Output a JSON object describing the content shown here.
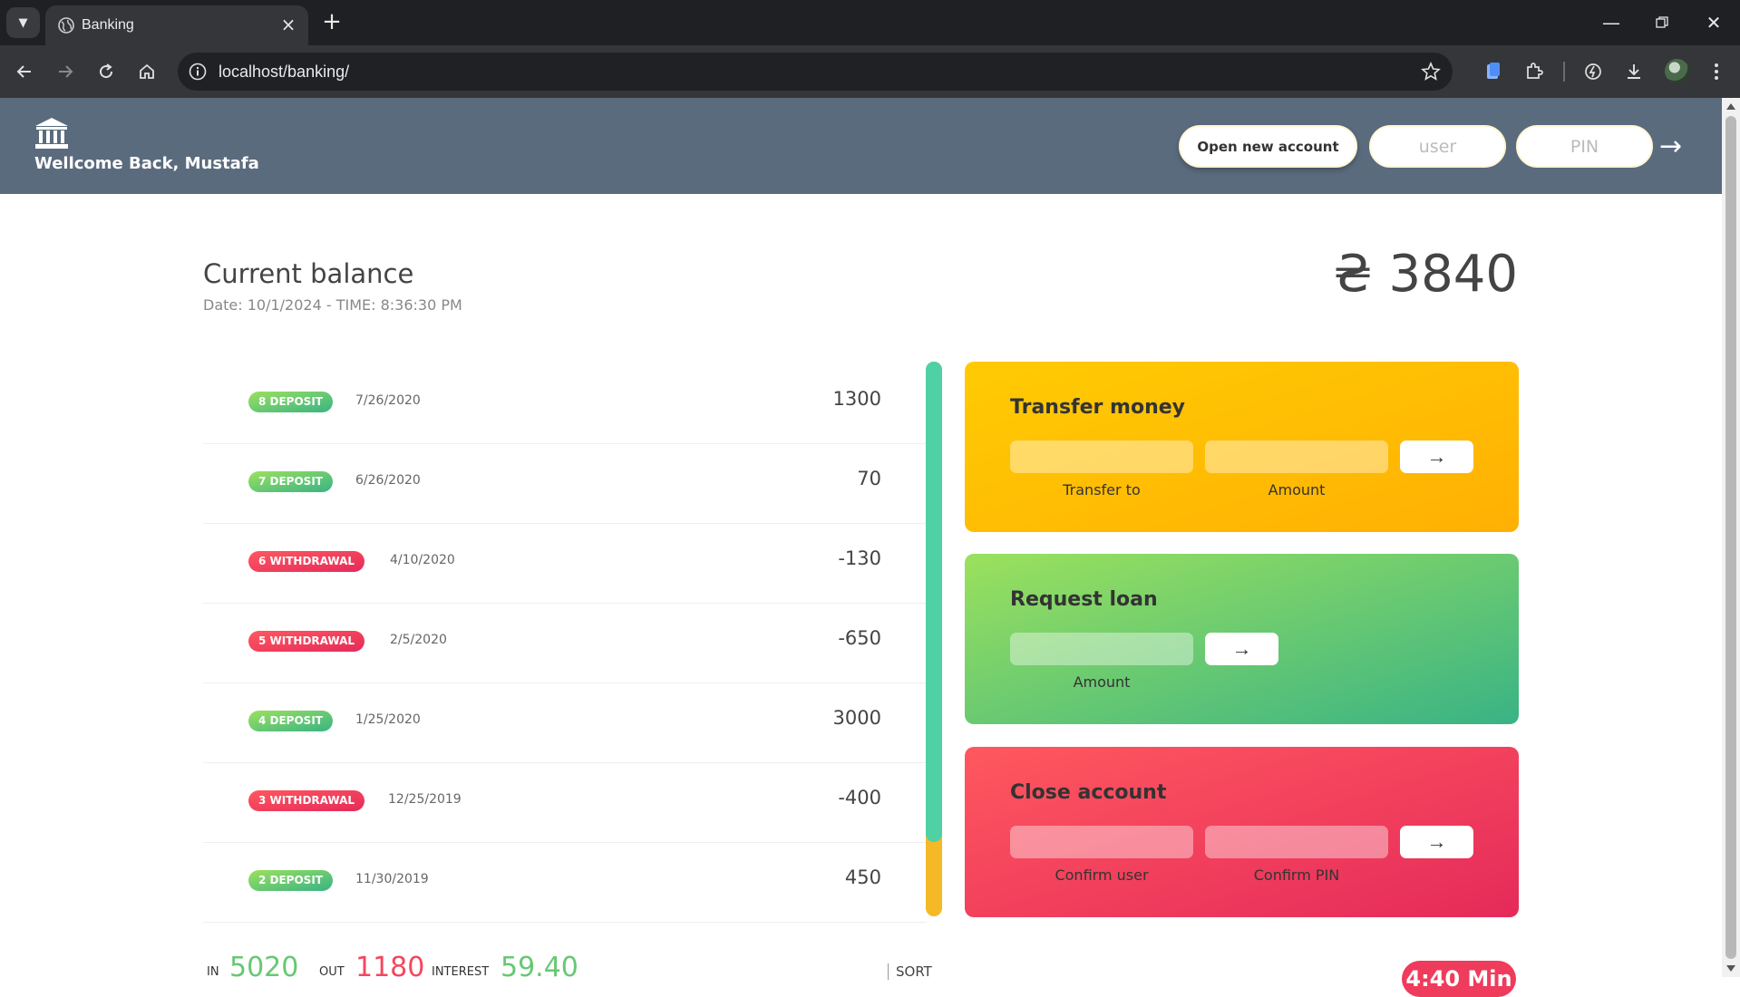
{
  "browser": {
    "tab_title": "Banking",
    "url": "localhost/banking/"
  },
  "header": {
    "welcome": "Wellcome Back, Mustafa",
    "open_account_label": "Open new account",
    "user_placeholder": "user",
    "pin_placeholder": "PIN",
    "login_arrow": "→"
  },
  "balance": {
    "title": "Current balance",
    "date_prefix": "Date: ",
    "date": "10/1/2024",
    "time_prefix": " - TIME: ",
    "time": "8:36:30 PM",
    "value": "₴ 3840"
  },
  "movements": [
    {
      "type": "8 DEPOSIT",
      "kind": "deposit",
      "date": "7/26/2020",
      "value": "1300"
    },
    {
      "type": "7 DEPOSIT",
      "kind": "deposit",
      "date": "6/26/2020",
      "value": "70"
    },
    {
      "type": "6 WITHDRAWAL",
      "kind": "withdrawal",
      "date": "4/10/2020",
      "value": "-130"
    },
    {
      "type": "5 WITHDRAWAL",
      "kind": "withdrawal",
      "date": "2/5/2020",
      "value": "-650"
    },
    {
      "type": "4 DEPOSIT",
      "kind": "deposit",
      "date": "1/25/2020",
      "value": "3000"
    },
    {
      "type": "3 WITHDRAWAL",
      "kind": "withdrawal",
      "date": "12/25/2019",
      "value": "-400"
    },
    {
      "type": "2 DEPOSIT",
      "kind": "deposit",
      "date": "11/30/2019",
      "value": "450"
    }
  ],
  "operations": {
    "transfer": {
      "title": "Transfer money",
      "label_to": "Transfer to",
      "label_amount": "Amount",
      "button": "→"
    },
    "loan": {
      "title": "Request loan",
      "label_amount": "Amount",
      "button": "→"
    },
    "close": {
      "title": "Close account",
      "label_user": "Confirm user",
      "label_pin": "Confirm PIN",
      "button": "→"
    }
  },
  "summary": {
    "in_label": "In",
    "in_value": "5020",
    "out_label": "Out",
    "out_value": "1180",
    "interest_label": "Interest",
    "interest_value": "59.40",
    "sort_label": "SORT",
    "timer": "4:40 Min"
  },
  "colors": {
    "header_bg": "#5b6b7e",
    "deposit": "#66c873",
    "withdrawal": "#f5465d",
    "transfer_card": "#ffc003",
    "loan_card": "#39b385",
    "close_card": "#f5465d"
  }
}
